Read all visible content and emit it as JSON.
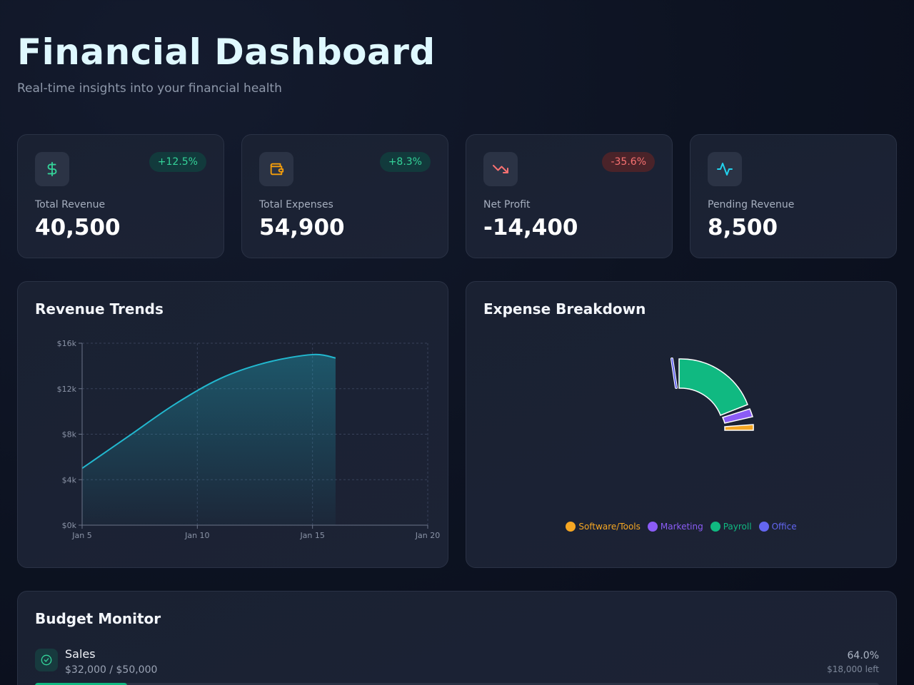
{
  "header": {
    "title": "Financial Dashboard",
    "subtitle": "Real-time insights into your financial health"
  },
  "stats": [
    {
      "label": "Total Revenue",
      "value": "40,500",
      "change": "+12.5%",
      "trend": "up",
      "icon": "dollar-icon",
      "icon_color": "#34d399"
    },
    {
      "label": "Total Expenses",
      "value": "54,900",
      "change": "+8.3%",
      "trend": "up",
      "icon": "wallet-icon",
      "icon_color": "#f59e0b"
    },
    {
      "label": "Net Profit",
      "value": "-14,400",
      "change": "-35.6%",
      "trend": "down",
      "icon": "trending-down-icon",
      "icon_color": "#f87171"
    },
    {
      "label": "Pending Revenue",
      "value": "8,500",
      "icon": "activity-icon",
      "icon_color": "#22d3ee"
    }
  ],
  "revenue": {
    "title": "Revenue Trends"
  },
  "expenses": {
    "title": "Expense Breakdown"
  },
  "budget": {
    "title": "Budget Monitor",
    "items": [
      {
        "name": "Sales",
        "amount": "$32,000 / $50,000",
        "percent": "64.0%",
        "left": "$18,000 left",
        "progress": 0.64
      }
    ]
  },
  "chart_data": [
    {
      "type": "area",
      "x": [
        "Jan 5",
        "Jan 7",
        "Jan 9",
        "Jan 11",
        "Jan 13",
        "Jan 15",
        "Jan 16"
      ],
      "values": [
        5000,
        7800,
        10600,
        12900,
        14300,
        15000,
        14700
      ],
      "xticks": [
        "Jan 5",
        "Jan 10",
        "Jan 15",
        "Jan 20"
      ],
      "xlim": [
        "Jan 5",
        "Jan 20"
      ],
      "yticks": [
        "$0k",
        "$4k",
        "$8k",
        "$12k",
        "$16k"
      ],
      "ylim": [
        0,
        16000
      ],
      "grid": true,
      "color": "#22b8cf"
    },
    {
      "type": "pie",
      "categories": [
        "Software/Tools",
        "Marketing",
        "Payroll",
        "Office"
      ],
      "colors": [
        "#f5a623",
        "#8b5cf6",
        "#10b981",
        "#6366f1"
      ],
      "legend": "bottom"
    }
  ]
}
